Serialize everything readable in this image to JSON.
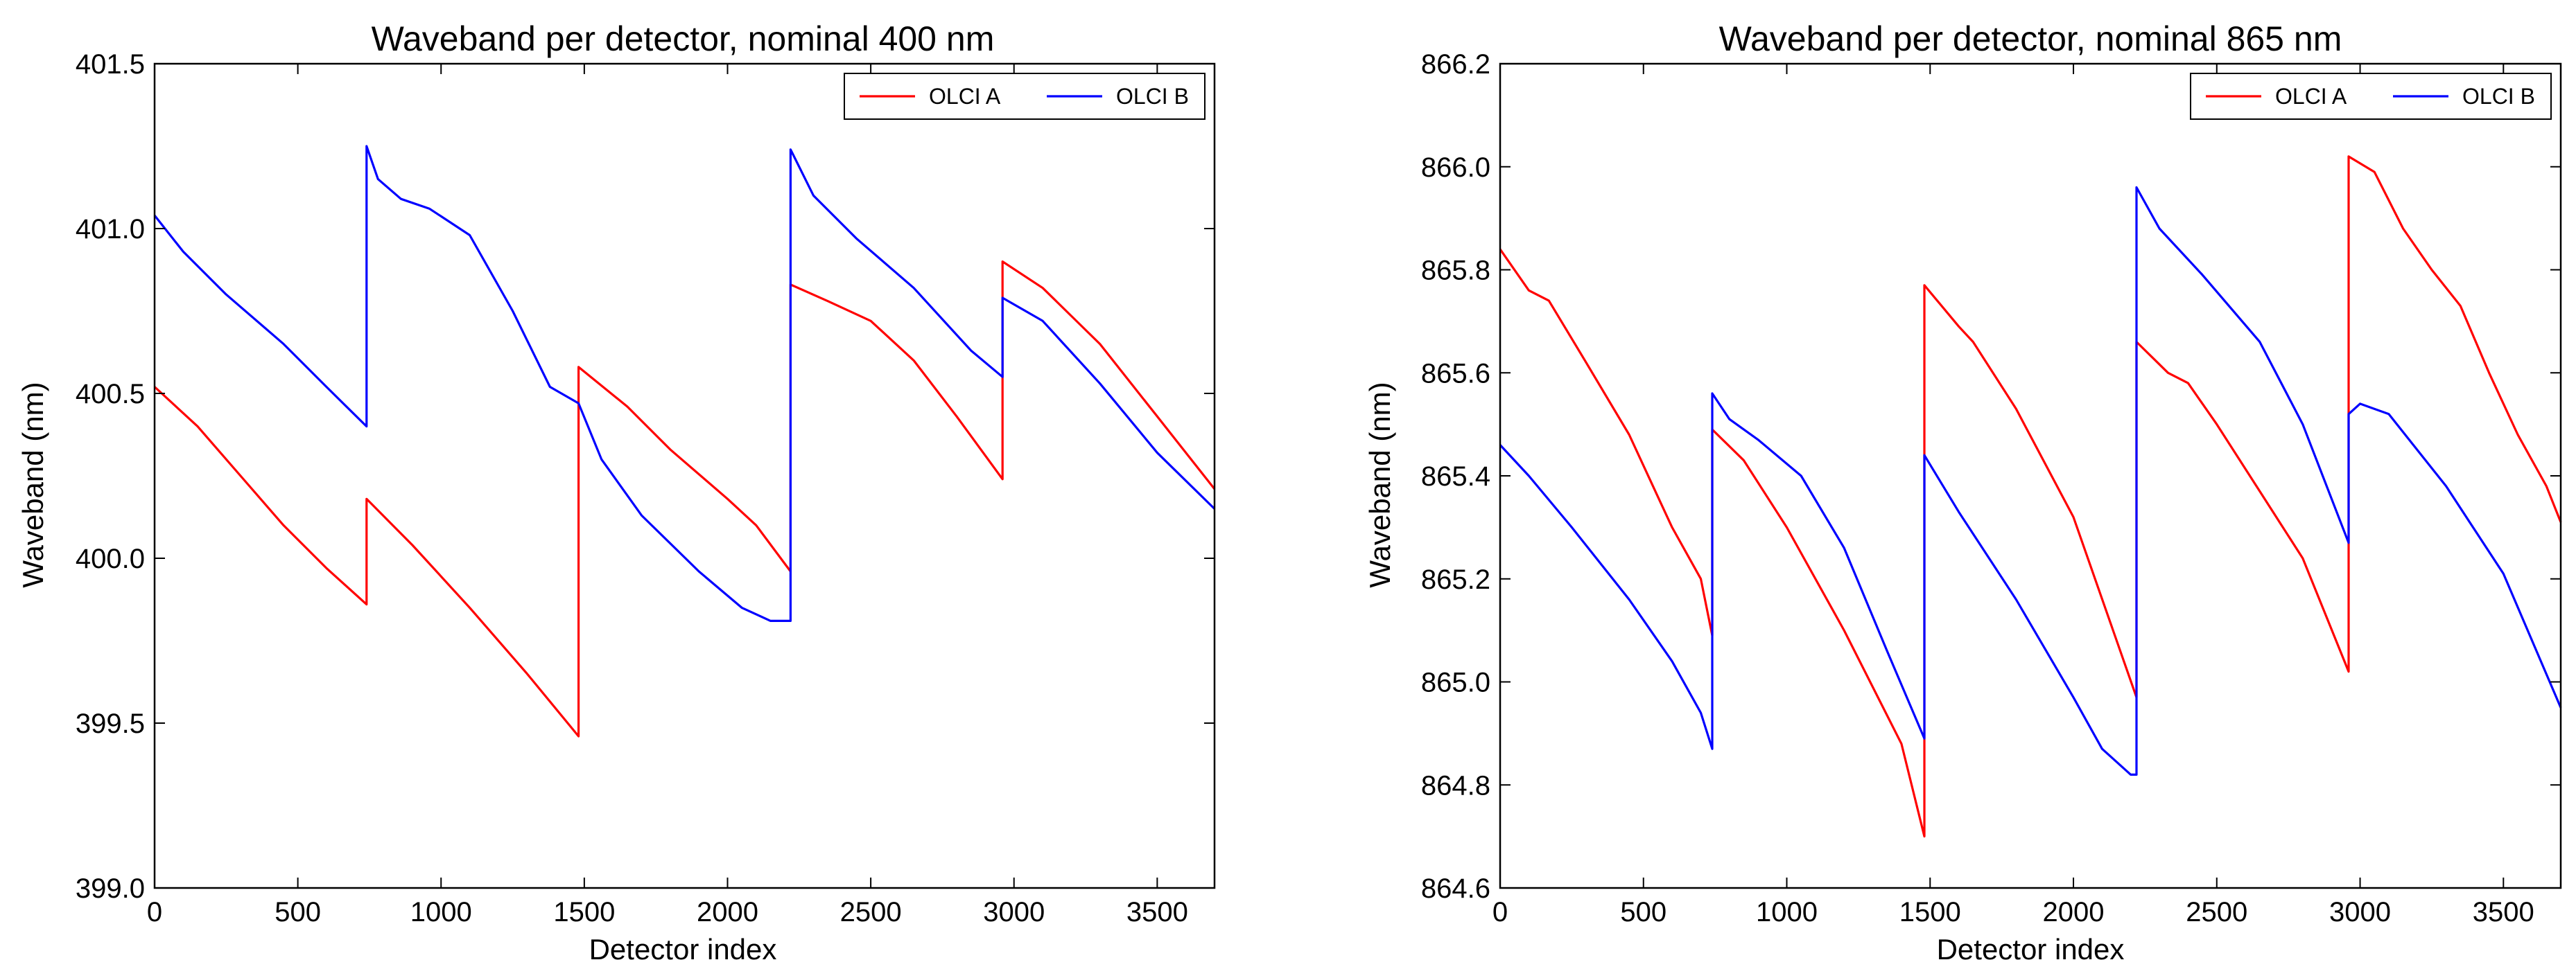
{
  "chart_data": [
    {
      "type": "line",
      "title": "Waveband per detector, nominal 400 nm",
      "xlabel": "Detector index",
      "ylabel": "Waveband (nm)",
      "xlim": [
        0,
        3700
      ],
      "ylim": [
        399.0,
        401.5
      ],
      "xticks": [
        0,
        500,
        1000,
        1500,
        2000,
        2500,
        3000,
        3500
      ],
      "yticks": [
        399.0,
        399.5,
        400.0,
        400.5,
        401.0,
        401.5
      ],
      "xtick_labels": [
        "0",
        "500",
        "1000",
        "1500",
        "2000",
        "2500",
        "3000",
        "3500"
      ],
      "ytick_labels": [
        "399.0",
        "399.5",
        "400.0",
        "400.5",
        "401.0",
        "401.5"
      ],
      "legend": {
        "location": "top-right",
        "entries": [
          "OLCI A",
          "OLCI B"
        ]
      },
      "series": [
        {
          "name": "OLCI A",
          "color": "#ff0000",
          "points": [
            [
              0,
              400.52
            ],
            [
              150,
              400.4
            ],
            [
              300,
              400.25
            ],
            [
              450,
              400.1
            ],
            [
              600,
              399.97
            ],
            [
              740,
              399.86
            ],
            [
              740,
              400.18
            ],
            [
              900,
              400.04
            ],
            [
              1100,
              399.85
            ],
            [
              1300,
              399.65
            ],
            [
              1480,
              399.46
            ],
            [
              1480,
              400.58
            ],
            [
              1650,
              400.46
            ],
            [
              1800,
              400.33
            ],
            [
              2000,
              400.18
            ],
            [
              2100,
              400.1
            ],
            [
              2220,
              399.96
            ],
            [
              2220,
              400.83
            ],
            [
              2350,
              400.78
            ],
            [
              2500,
              400.72
            ],
            [
              2650,
              400.6
            ],
            [
              2800,
              400.43
            ],
            [
              2960,
              400.24
            ],
            [
              2960,
              400.9
            ],
            [
              3100,
              400.82
            ],
            [
              3300,
              400.65
            ],
            [
              3500,
              400.43
            ],
            [
              3700,
              400.21
            ]
          ]
        },
        {
          "name": "OLCI B",
          "color": "#0000ff",
          "points": [
            [
              0,
              401.04
            ],
            [
              100,
              400.93
            ],
            [
              250,
              400.8
            ],
            [
              450,
              400.65
            ],
            [
              600,
              400.52
            ],
            [
              740,
              400.4
            ],
            [
              740,
              401.25
            ],
            [
              780,
              401.15
            ],
            [
              860,
              401.09
            ],
            [
              960,
              401.06
            ],
            [
              1100,
              400.98
            ],
            [
              1250,
              400.75
            ],
            [
              1380,
              400.52
            ],
            [
              1480,
              400.47
            ],
            [
              1560,
              400.3
            ],
            [
              1700,
              400.13
            ],
            [
              1900,
              399.96
            ],
            [
              2050,
              399.85
            ],
            [
              2150,
              399.81
            ],
            [
              2220,
              399.81
            ],
            [
              2220,
              401.24
            ],
            [
              2300,
              401.1
            ],
            [
              2450,
              400.97
            ],
            [
              2650,
              400.82
            ],
            [
              2850,
              400.63
            ],
            [
              2960,
              400.55
            ],
            [
              2960,
              400.79
            ],
            [
              3100,
              400.72
            ],
            [
              3300,
              400.53
            ],
            [
              3500,
              400.32
            ],
            [
              3700,
              400.15
            ]
          ]
        }
      ]
    },
    {
      "type": "line",
      "title": "Waveband per detector, nominal 865 nm",
      "xlabel": "Detector index",
      "ylabel": "Waveband (nm)",
      "xlim": [
        0,
        3700
      ],
      "ylim": [
        864.6,
        866.2
      ],
      "xticks": [
        0,
        500,
        1000,
        1500,
        2000,
        2500,
        3000,
        3500
      ],
      "yticks": [
        864.6,
        864.8,
        865.0,
        865.2,
        865.4,
        865.6,
        865.8,
        866.0,
        866.2
      ],
      "xtick_labels": [
        "0",
        "500",
        "1000",
        "1500",
        "2000",
        "2500",
        "3000",
        "3500"
      ],
      "ytick_labels": [
        "864.6",
        "864.8",
        "865.0",
        "865.2",
        "865.4",
        "865.6",
        "865.8",
        "866.0",
        "866.2"
      ],
      "legend": {
        "location": "top-right",
        "entries": [
          "OLCI A",
          "OLCI B"
        ]
      },
      "series": [
        {
          "name": "OLCI A",
          "color": "#ff0000",
          "points": [
            [
              0,
              865.84
            ],
            [
              100,
              865.76
            ],
            [
              170,
              865.74
            ],
            [
              300,
              865.62
            ],
            [
              450,
              865.48
            ],
            [
              550,
              865.36
            ],
            [
              600,
              865.3
            ],
            [
              700,
              865.2
            ],
            [
              740,
              865.09
            ],
            [
              740,
              865.49
            ],
            [
              850,
              865.43
            ],
            [
              1000,
              865.3
            ],
            [
              1200,
              865.1
            ],
            [
              1400,
              864.88
            ],
            [
              1480,
              864.7
            ],
            [
              1480,
              865.77
            ],
            [
              1600,
              865.69
            ],
            [
              1650,
              865.66
            ],
            [
              1800,
              865.53
            ],
            [
              2000,
              865.32
            ],
            [
              2220,
              864.97
            ],
            [
              2220,
              865.66
            ],
            [
              2330,
              865.6
            ],
            [
              2400,
              865.58
            ],
            [
              2500,
              865.5
            ],
            [
              2650,
              865.37
            ],
            [
              2800,
              865.24
            ],
            [
              2960,
              865.02
            ],
            [
              2960,
              866.02
            ],
            [
              3050,
              865.99
            ],
            [
              3150,
              865.88
            ],
            [
              3250,
              865.8
            ],
            [
              3350,
              865.73
            ],
            [
              3450,
              865.6
            ],
            [
              3550,
              865.48
            ],
            [
              3650,
              865.38
            ],
            [
              3700,
              865.31
            ]
          ]
        },
        {
          "name": "OLCI B",
          "color": "#0000ff",
          "points": [
            [
              0,
              865.46
            ],
            [
              100,
              865.4
            ],
            [
              250,
              865.3
            ],
            [
              450,
              865.16
            ],
            [
              600,
              865.04
            ],
            [
              700,
              864.94
            ],
            [
              740,
              864.87
            ],
            [
              740,
              865.56
            ],
            [
              800,
              865.51
            ],
            [
              900,
              865.47
            ],
            [
              1050,
              865.4
            ],
            [
              1200,
              865.26
            ],
            [
              1350,
              865.06
            ],
            [
              1480,
              864.89
            ],
            [
              1480,
              865.44
            ],
            [
              1600,
              865.33
            ],
            [
              1800,
              865.16
            ],
            [
              2000,
              864.97
            ],
            [
              2100,
              864.87
            ],
            [
              2200,
              864.82
            ],
            [
              2220,
              864.82
            ],
            [
              2220,
              865.96
            ],
            [
              2300,
              865.88
            ],
            [
              2450,
              865.79
            ],
            [
              2650,
              865.66
            ],
            [
              2800,
              865.5
            ],
            [
              2960,
              865.27
            ],
            [
              2960,
              865.52
            ],
            [
              3000,
              865.54
            ],
            [
              3100,
              865.52
            ],
            [
              3300,
              865.38
            ],
            [
              3500,
              865.21
            ],
            [
              3700,
              864.95
            ]
          ]
        }
      ]
    }
  ]
}
